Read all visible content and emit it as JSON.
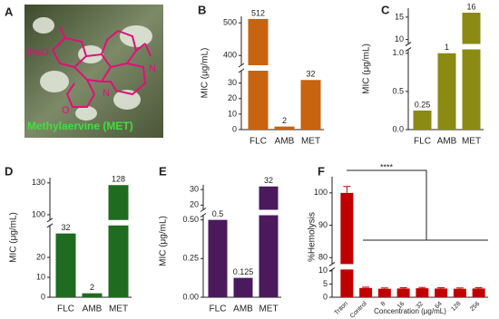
{
  "figure_a": {
    "panel_label": "A",
    "structure_labels": [
      "MeO",
      "N",
      "N",
      "O"
    ],
    "caption": "Methylaervine (MET)"
  },
  "chart_data": [
    {
      "type": "bar",
      "panel_label": "B",
      "y_label": "MIC (μg/mL)",
      "categories": [
        "FLC",
        "AMB",
        "MET"
      ],
      "values": [
        512,
        2,
        32
      ],
      "color": "#c8630f",
      "show_value_labels": true,
      "ylim": [
        0,
        520
      ],
      "ybreak": [
        38,
        370
      ],
      "yticks": [
        0,
        10,
        20,
        30,
        400,
        500
      ]
    },
    {
      "type": "bar",
      "panel_label": "C",
      "y_label": "MIC (μg/mL)",
      "categories": [
        "FLC",
        "AMB",
        "MET"
      ],
      "values": [
        0.25,
        1,
        16
      ],
      "color": "#8a8a14",
      "show_value_labels": true,
      "ylim": [
        0,
        17
      ],
      "ybreak": [
        1.05,
        9
      ],
      "yticks": [
        {
          "value": 0,
          "label": "0.0"
        },
        0.5,
        {
          "value": 1,
          "label": "1.0"
        },
        10,
        15
      ]
    },
    {
      "type": "bar",
      "panel_label": "D",
      "y_label": "MIC (μg/mL)",
      "categories": [
        "FLC",
        "AMB",
        "MET"
      ],
      "values": [
        32,
        2,
        128
      ],
      "color": "#1f6b1f",
      "show_value_labels": true,
      "ylim": [
        0,
        135
      ],
      "ybreak": [
        36,
        95
      ],
      "yticks": [
        0,
        10,
        20,
        100,
        130
      ]
    },
    {
      "type": "bar",
      "panel_label": "E",
      "y_label": "MIC (μg/mL)",
      "categories": [
        "FLC",
        "AMB",
        "MET"
      ],
      "values": [
        0.5,
        0.125,
        32
      ],
      "color": "#4a1a5c",
      "show_value_labels": true,
      "ylim": [
        0,
        33
      ],
      "ybreak": [
        0.53,
        17
      ],
      "yticks": [
        {
          "value": 0,
          "label": "0.00"
        },
        0.25,
        {
          "value": 0.5,
          "label": "0.50"
        },
        20,
        30
      ]
    },
    {
      "type": "bar",
      "panel_label": "F",
      "y_label": "%Hemolysis",
      "x_label": "Concentration (μg/mL)",
      "categories": [
        "Triton",
        "Control",
        "8",
        "16",
        "32",
        "64",
        "128",
        "256"
      ],
      "values": [
        100,
        3.5,
        3.2,
        3.3,
        3.4,
        3.3,
        3.2,
        3.3
      ],
      "errors": [
        2,
        0.3,
        0.3,
        0.3,
        0.3,
        0.3,
        0.3,
        0.3
      ],
      "color": "#c00000",
      "show_value_labels": false,
      "ylim": [
        0,
        105
      ],
      "ybreak": [
        10.5,
        78
      ],
      "yticks": [
        0,
        5,
        10,
        80,
        90,
        100
      ],
      "significance": "****"
    }
  ]
}
